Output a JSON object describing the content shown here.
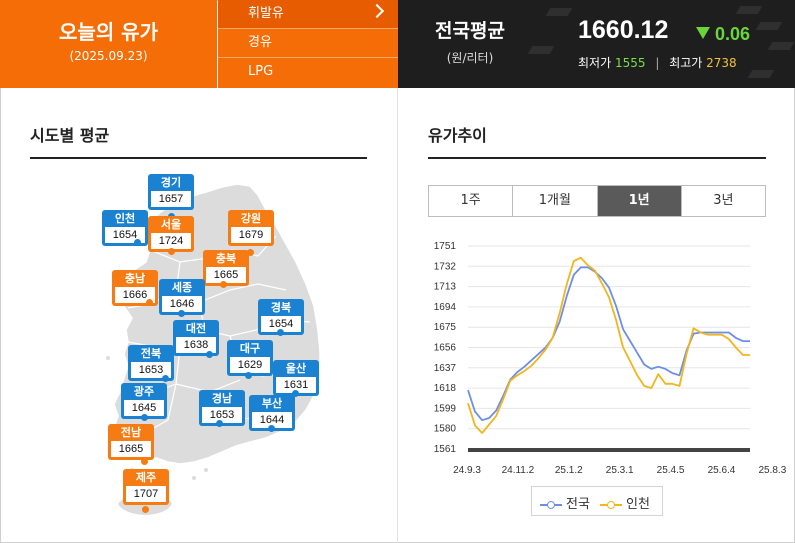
{
  "header": {
    "title": "오늘의 유가",
    "date": "(2025.09.23)",
    "fuel_types": [
      "휘발유",
      "경유",
      "LPG"
    ],
    "active_fuel": "휘발유"
  },
  "national": {
    "title": "전국평균",
    "unit": "(원/리터)",
    "price": "1660.12",
    "change": "0.06",
    "min_label": "최저가",
    "min_value": "1555",
    "max_label": "최고가",
    "max_value": "2738",
    "change_color": "#6bd43a"
  },
  "regional": {
    "title": "시도별 평균",
    "regions": [
      {
        "name": "경기",
        "value": "1657",
        "color": "blue"
      },
      {
        "name": "인천",
        "value": "1654",
        "color": "blue"
      },
      {
        "name": "서울",
        "value": "1724",
        "color": "orange"
      },
      {
        "name": "강원",
        "value": "1679",
        "color": "orange"
      },
      {
        "name": "충북",
        "value": "1665",
        "color": "orange"
      },
      {
        "name": "충남",
        "value": "1666",
        "color": "orange"
      },
      {
        "name": "세종",
        "value": "1646",
        "color": "blue"
      },
      {
        "name": "경북",
        "value": "1654",
        "color": "blue"
      },
      {
        "name": "대전",
        "value": "1638",
        "color": "blue"
      },
      {
        "name": "전북",
        "value": "1653",
        "color": "blue"
      },
      {
        "name": "대구",
        "value": "1629",
        "color": "blue"
      },
      {
        "name": "울산",
        "value": "1631",
        "color": "blue"
      },
      {
        "name": "광주",
        "value": "1645",
        "color": "blue"
      },
      {
        "name": "경남",
        "value": "1653",
        "color": "blue"
      },
      {
        "name": "부산",
        "value": "1644",
        "color": "blue"
      },
      {
        "name": "전남",
        "value": "1665",
        "color": "orange"
      },
      {
        "name": "제주",
        "value": "1707",
        "color": "orange"
      }
    ]
  },
  "trend": {
    "title": "유가추이",
    "periods": [
      "1주",
      "1개월",
      "1년",
      "3년"
    ],
    "active_period": "1년"
  },
  "chart_data": {
    "type": "line",
    "x_ticks": [
      "24.9.3",
      "24.11.2",
      "25.1.2",
      "25.3.1",
      "25.4.5",
      "25.6.4",
      "25.8.3"
    ],
    "y_ticks": [
      1561,
      1580,
      1599,
      1618,
      1637,
      1656,
      1675,
      1694,
      1713,
      1732,
      1751
    ],
    "ylim": [
      1561,
      1751
    ],
    "series": [
      {
        "name": "전국",
        "color": "#6b8fe8",
        "values": [
          1616,
          1596,
          1588,
          1590,
          1597,
          1611,
          1626,
          1633,
          1638,
          1644,
          1650,
          1656,
          1665,
          1680,
          1704,
          1724,
          1731,
          1731,
          1727,
          1721,
          1712,
          1695,
          1673,
          1662,
          1651,
          1640,
          1636,
          1638,
          1636,
          1632,
          1630,
          1653,
          1669,
          1670,
          1670,
          1670,
          1670,
          1670,
          1665,
          1662,
          1662
        ]
      },
      {
        "name": "인천",
        "color": "#f2b51c",
        "values": [
          1604,
          1583,
          1576,
          1584,
          1592,
          1608,
          1625,
          1630,
          1634,
          1639,
          1646,
          1654,
          1665,
          1688,
          1715,
          1737,
          1740,
          1733,
          1728,
          1716,
          1703,
          1682,
          1656,
          1643,
          1630,
          1620,
          1618,
          1631,
          1622,
          1622,
          1620,
          1650,
          1674,
          1670,
          1668,
          1668,
          1668,
          1664,
          1656,
          1649,
          1649
        ]
      }
    ]
  }
}
